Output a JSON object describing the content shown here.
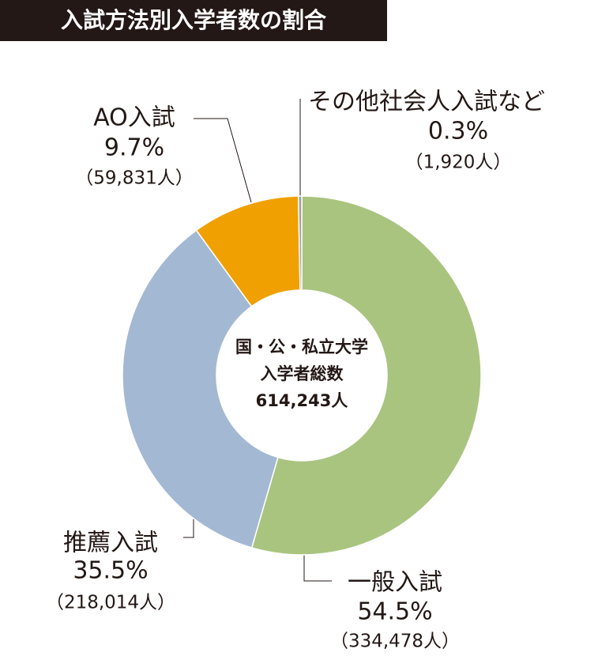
{
  "chart_data": {
    "type": "donut",
    "title": "入試方法別入学者数の割合",
    "categories": [
      "一般入試",
      "推薦入試",
      "AO入試",
      "その他社会人入試など"
    ],
    "values": [
      54.5,
      35.5,
      9.7,
      0.3
    ],
    "value_labels": [
      "54.5%",
      "35.5%",
      "9.7%",
      "0.3%"
    ],
    "counts": [
      334478,
      218014,
      59831,
      1920
    ],
    "count_labels": [
      "（334,478人）",
      "（218,014人）",
      "（59,831人）",
      "（1,920人）"
    ],
    "colors": [
      "#a9c47f",
      "#a3b8d3",
      "#f0a000",
      "#a0a0a0"
    ],
    "center_text": [
      "国・公・私立大学",
      "入学者総数",
      "614,243人"
    ]
  }
}
